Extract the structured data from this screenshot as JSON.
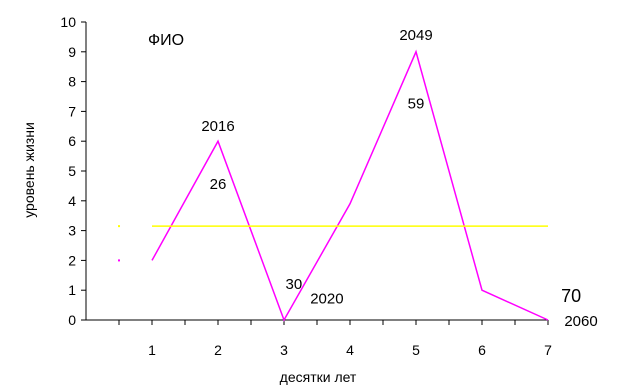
{
  "chart_data": {
    "type": "line",
    "title": "ФИО",
    "xlabel": "десятки лет",
    "ylabel": "уровень жизни",
    "xlim": [
      0,
      7
    ],
    "ylim": [
      0,
      10
    ],
    "x_ticks": [
      "1",
      "2",
      "3",
      "4",
      "5",
      "6",
      "7"
    ],
    "y_ticks": [
      "0",
      "1",
      "2",
      "3",
      "4",
      "5",
      "6",
      "7",
      "8",
      "9",
      "10"
    ],
    "grid": false,
    "series": [
      {
        "color": "#ff00ff",
        "x": [
          1,
          2,
          3,
          4,
          5,
          6,
          7
        ],
        "y": [
          2,
          6,
          0,
          3.9,
          9,
          1,
          0
        ]
      },
      {
        "color": "#ffff00",
        "x": [
          1,
          7
        ],
        "y": [
          3.15,
          3.15
        ]
      }
    ],
    "annotations": [
      {
        "text": "2016",
        "x": 2,
        "y": 6.55,
        "size": "normal"
      },
      {
        "text": "26",
        "x": 2,
        "y": 4.6,
        "size": "normal"
      },
      {
        "text": "30",
        "x": 3.15,
        "y": 1.25,
        "size": "normal"
      },
      {
        "text": "2020",
        "x": 3.65,
        "y": 0.75,
        "size": "normal"
      },
      {
        "text": "2049",
        "x": 5,
        "y": 9.6,
        "size": "normal"
      },
      {
        "text": "59",
        "x": 5,
        "y": 7.3,
        "size": "normal"
      },
      {
        "text": "70",
        "x": 7.35,
        "y": 0.8,
        "size": "big"
      },
      {
        "text": "2060",
        "x": 7.5,
        "y": 0,
        "size": "normal"
      }
    ],
    "markers": [
      {
        "color": "#ffff00",
        "x": 0.5,
        "y": 3.15
      },
      {
        "color": "#ff00ff",
        "x": 0.5,
        "y": 2
      }
    ]
  }
}
